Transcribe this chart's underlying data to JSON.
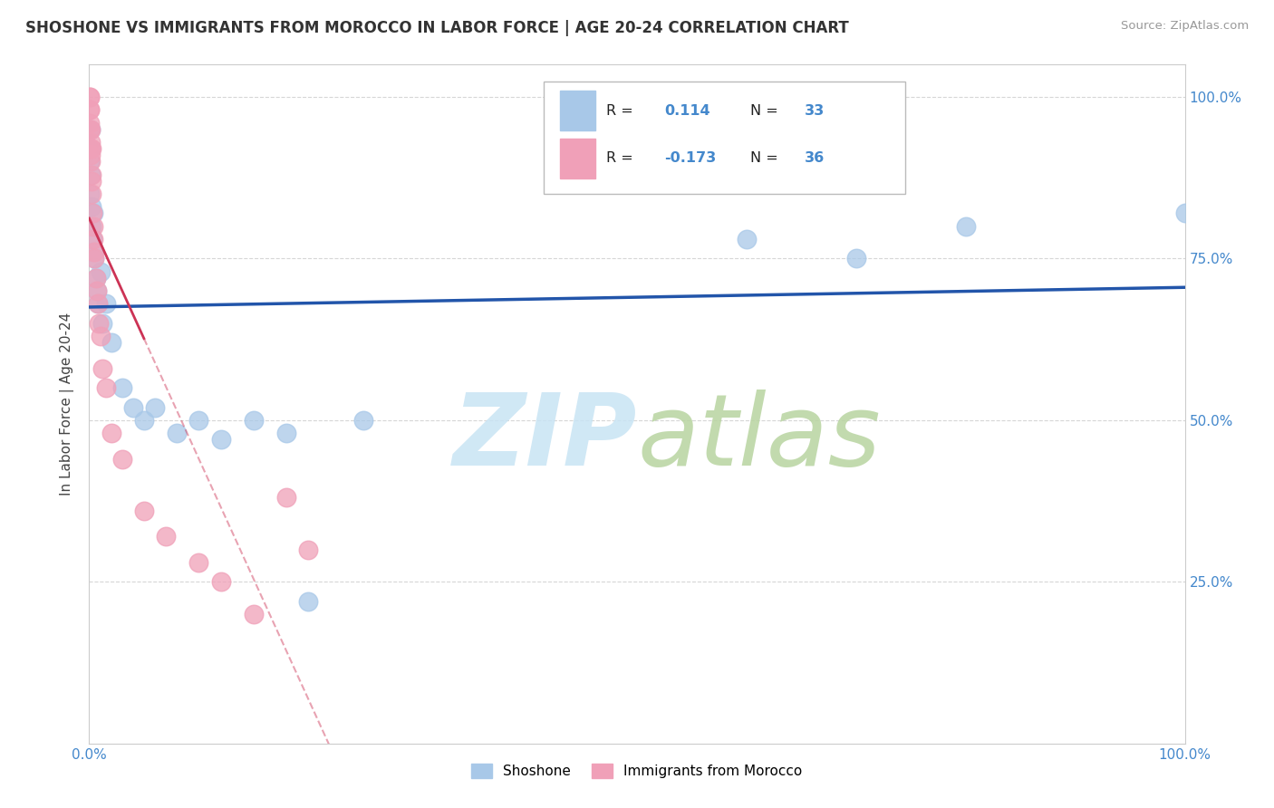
{
  "title": "SHOSHONE VS IMMIGRANTS FROM MOROCCO IN LABOR FORCE | AGE 20-24 CORRELATION CHART",
  "source": "Source: ZipAtlas.com",
  "ylabel": "In Labor Force | Age 20-24",
  "R_shoshone": 0.114,
  "N_shoshone": 33,
  "R_morocco": -0.173,
  "N_morocco": 36,
  "shoshone_color": "#a8c8e8",
  "morocco_color": "#f0a0b8",
  "shoshone_line_color": "#2255aa",
  "morocco_line_color": "#cc3355",
  "shoshone_x": [
    0.05,
    0.08,
    0.1,
    0.12,
    0.15,
    0.2,
    0.25,
    0.3,
    0.35,
    0.4,
    0.5,
    0.6,
    0.7,
    0.8,
    1.0,
    1.2,
    1.5,
    2.0,
    3.0,
    4.0,
    5.0,
    6.0,
    8.0,
    10.0,
    12.0,
    15.0,
    18.0,
    20.0,
    25.0,
    60.0,
    70.0,
    80.0,
    100.0
  ],
  "shoshone_y": [
    90.0,
    85.0,
    88.0,
    92.0,
    95.0,
    80.0,
    83.0,
    78.0,
    76.0,
    82.0,
    75.0,
    72.0,
    70.0,
    68.0,
    73.0,
    65.0,
    68.0,
    62.0,
    55.0,
    52.0,
    50.0,
    52.0,
    48.0,
    50.0,
    47.0,
    50.0,
    48.0,
    22.0,
    50.0,
    78.0,
    75.0,
    80.0,
    82.0
  ],
  "morocco_x": [
    0.05,
    0.07,
    0.08,
    0.1,
    0.12,
    0.15,
    0.18,
    0.2,
    0.22,
    0.25,
    0.3,
    0.35,
    0.4,
    0.45,
    0.5,
    0.6,
    0.7,
    0.8,
    0.9,
    1.0,
    1.2,
    1.5,
    2.0,
    3.0,
    5.0,
    7.0,
    10.0,
    12.0,
    15.0,
    18.0,
    20.0,
    0.05,
    0.06,
    0.08,
    0.09,
    0.11
  ],
  "morocco_y": [
    100.0,
    98.0,
    96.0,
    95.0,
    93.0,
    91.0,
    92.0,
    88.0,
    87.0,
    85.0,
    82.0,
    80.0,
    78.0,
    76.0,
    75.0,
    72.0,
    70.0,
    68.0,
    65.0,
    63.0,
    58.0,
    55.0,
    48.0,
    44.0,
    36.0,
    32.0,
    28.0,
    25.0,
    20.0,
    38.0,
    30.0,
    100.0,
    98.0,
    95.0,
    92.0,
    90.0
  ],
  "xlim": [
    0,
    100
  ],
  "ylim": [
    0,
    105
  ],
  "xticks": [
    0,
    25,
    50,
    75,
    100
  ],
  "yticks": [
    25,
    50,
    75,
    100
  ],
  "xticklabels": [
    "0.0%",
    "",
    "",
    "",
    "100.0%"
  ],
  "yticklabels_right": [
    "25.0%",
    "50.0%",
    "75.0%",
    "100.0%"
  ],
  "grid_color": "#cccccc",
  "watermark_zip_color": "#c8e4f4",
  "watermark_atlas_color": "#b8d4a0"
}
